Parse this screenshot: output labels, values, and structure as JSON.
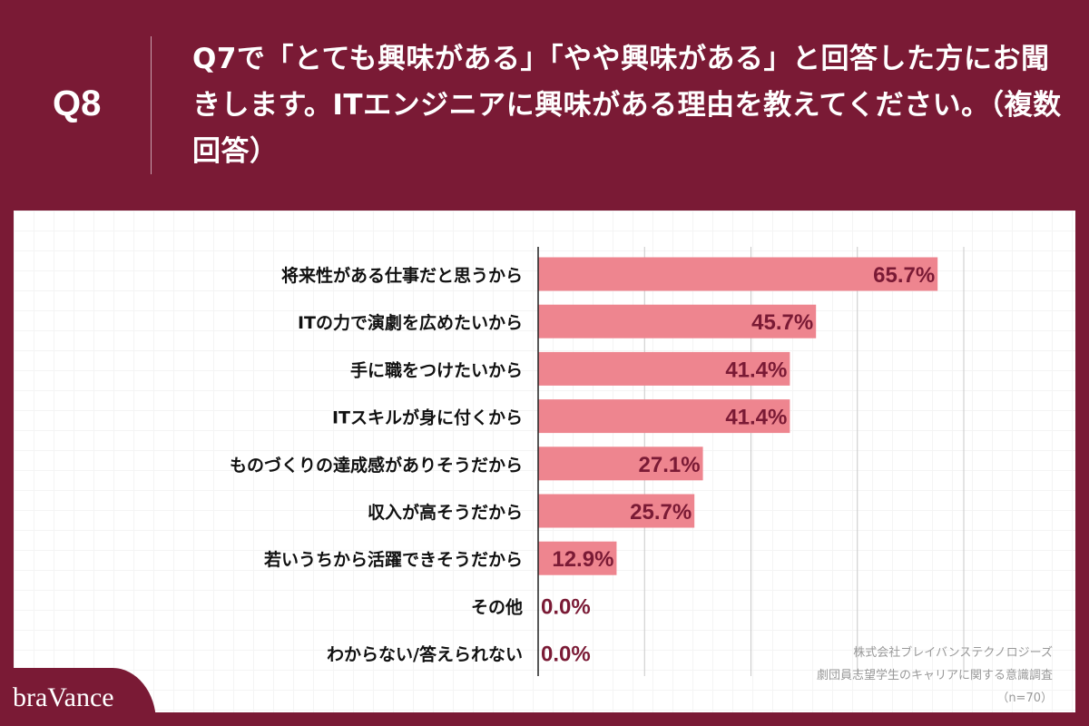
{
  "header": {
    "question_number": "Q8",
    "title": "Q7で「とても興味がある」「やや興味がある」と回答した方にお聞きします。ITエンジニアに興味がある理由を教えてください。（複数回答）"
  },
  "chart_data": {
    "type": "bar",
    "orientation": "horizontal",
    "categories": [
      "将来性がある仕事だと思うから",
      "ITの力で演劇を広めたいから",
      "手に職をつけたいから",
      "ITスキルが身に付くから",
      "ものづくりの達成感がありそうだから",
      "収入が高そうだから",
      "若いうちから活躍できそうだから",
      "その他",
      "わからない/答えられない"
    ],
    "values": [
      65.7,
      45.7,
      41.4,
      41.4,
      27.1,
      25.7,
      12.9,
      0.0,
      0.0
    ],
    "value_labels": [
      "65.7%",
      "45.7%",
      "41.4%",
      "41.4%",
      "27.1%",
      "25.7%",
      "12.9%",
      "0.0%",
      "0.0%"
    ],
    "xlim": [
      0,
      87.5
    ],
    "grid": true,
    "colors": {
      "bar": "#ee858f",
      "label": "#7a1a35"
    }
  },
  "source": {
    "line1": "株式会社ブレイバンステクノロジーズ",
    "line2": "劇団員志望学生のキャリアに関する意識調査",
    "line3": "（n=70）"
  },
  "brand": {
    "logo": "braVance"
  },
  "colors": {
    "background": "#7a1a35"
  }
}
